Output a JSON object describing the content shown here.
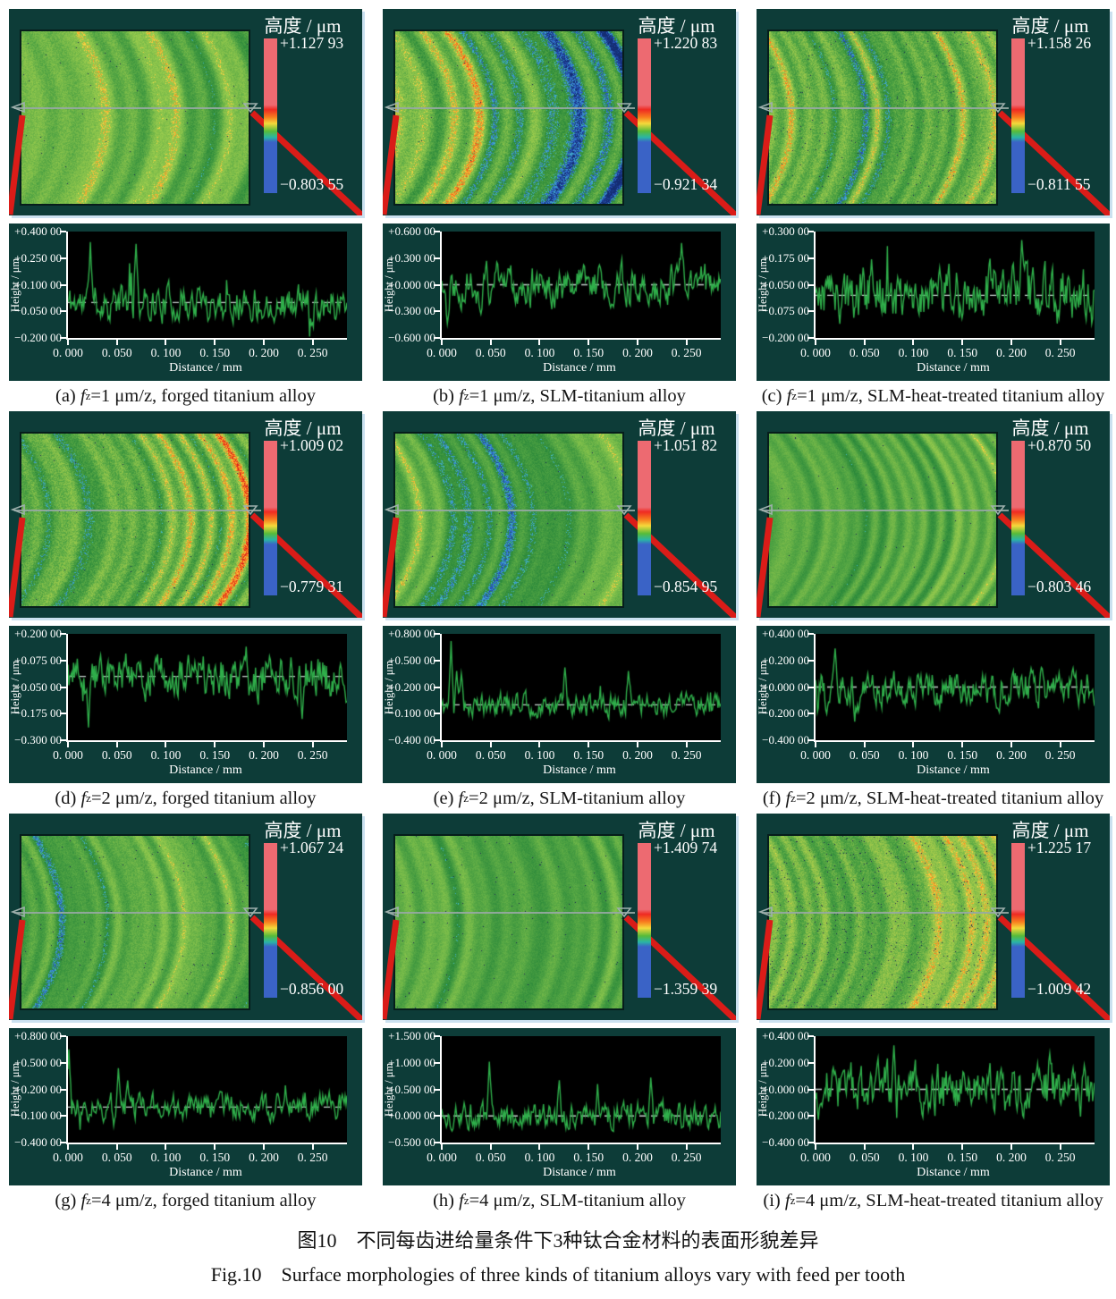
{
  "figure": {
    "colorbar_title": "高度 / μm",
    "height_axis_label": "Height / μm",
    "distance_axis_label": "Distance / mm",
    "x_ticks": [
      "0. 000",
      "0. 050",
      "0. 100",
      "0. 150",
      "0. 200",
      "0. 250"
    ],
    "caption_f_symbol": "f",
    "caption_f_subscript": "z",
    "caption_zh": "图10　不同每齿进给量条件下3种钛合金材料的表面形貌差异",
    "caption_en": "Fig.10　Surface morphologies of three kinds of titanium alloys vary with feed per tooth"
  },
  "colors": {
    "panel_background": "#0d3c38",
    "plot_background": "#000000",
    "profile_line": "#2fae4a",
    "baseline_dash": "#c8d2cf",
    "connector_red": "#da1c18",
    "axis_text": "#ffffff",
    "colorbar_top": "#ed6a71",
    "colorbar_bottom": "#3a63c6"
  },
  "panels": [
    {
      "id": "a",
      "colorbar": {
        "max": "+1.127 93",
        "min": "−0.803 55"
      },
      "caption": {
        "label": "(a) ",
        "feed": "=1 μm/z, ",
        "material": "forged titanium alloy"
      },
      "profile": {
        "type": "line",
        "ylim": [
          -0.2,
          0.4
        ],
        "y_ticks": [
          "+0.400 00",
          "+0.250 00",
          "+0.100 00",
          "−0.050 00",
          "−0.200 00"
        ],
        "seed": 11,
        "amp": 0.055,
        "spike_prob": 0.012,
        "spike_amp": 0.18,
        "spike_bias": 0.7,
        "peaks": [
          [
            0.08,
            0.34
          ],
          [
            0.245,
            0.33
          ]
        ]
      },
      "heatmap": {
        "seed": 101,
        "red": 0.18,
        "blue": 0.16,
        "yellow": 0.3,
        "grain": 0.55,
        "curve": 1.0,
        "speck": 0.001
      }
    },
    {
      "id": "b",
      "colorbar": {
        "max": "+1.220 83",
        "min": "−0.921 34"
      },
      "caption": {
        "label": "(b) ",
        "feed": "=1 μm/z, ",
        "material": "SLM-titanium alloy"
      },
      "profile": {
        "type": "line",
        "ylim": [
          -0.6,
          0.6
        ],
        "y_ticks": [
          "+0.600 00",
          "+0.300 00",
          "+0.000 00",
          "−0.300 00",
          "−0.600 00"
        ],
        "seed": 22,
        "amp": 0.12,
        "spike_prob": 0.012,
        "spike_amp": 0.2,
        "spike_bias": 0.5,
        "peaks": [
          [
            0.02,
            -0.44
          ],
          [
            0.14,
            -0.33
          ],
          [
            0.86,
            0.47
          ]
        ]
      },
      "heatmap": {
        "seed": 202,
        "red": 0.22,
        "blue": 0.3,
        "yellow": 0.35,
        "grain": 0.6,
        "curve": 1.2,
        "speck": 0.001
      }
    },
    {
      "id": "c",
      "colorbar": {
        "max": "+1.158 26",
        "min": "−0.811 55"
      },
      "caption": {
        "label": "(c) ",
        "feed": "=1 μm/z, ",
        "material": "SLM-heat-treated titanium alloy"
      },
      "profile": {
        "type": "line",
        "ylim": [
          -0.2,
          0.3
        ],
        "y_ticks": [
          "+0.300 00",
          "+0.175 00",
          "+0.050 00",
          "−0.075 00",
          "−0.200 00"
        ],
        "seed": 33,
        "amp": 0.07,
        "spike_prob": 0.008,
        "spike_amp": 0.12,
        "spike_bias": 0.6,
        "peaks": [
          [
            0.2,
            0.17
          ],
          [
            0.74,
            0.26
          ]
        ]
      },
      "heatmap": {
        "seed": 303,
        "red": 0.3,
        "blue": 0.1,
        "yellow": 0.45,
        "grain": 0.7,
        "curve": 1.0,
        "speck": 0.004
      }
    },
    {
      "id": "d",
      "colorbar": {
        "max": "+1.009 02",
        "min": "−0.779 31"
      },
      "caption": {
        "label": "(d) ",
        "feed": "=2 μm/z, ",
        "material": "forged titanium alloy"
      },
      "profile": {
        "type": "line",
        "ylim": [
          -0.3,
          0.2
        ],
        "y_ticks": [
          "+0.200 00",
          "+0.075 00",
          "−0.050 00",
          "−0.175 00",
          "−0.300 00"
        ],
        "seed": 44,
        "amp": 0.055,
        "spike_prob": 0.01,
        "spike_amp": 0.12,
        "spike_bias": 0.3,
        "peaks": [
          [
            0.075,
            -0.24
          ],
          [
            0.64,
            0.14
          ],
          [
            0.84,
            -0.2
          ]
        ]
      },
      "heatmap": {
        "seed": 404,
        "red": 0.42,
        "blue": 0.14,
        "yellow": 0.4,
        "grain": 0.6,
        "curve": 1.2,
        "speck": 0.001
      }
    },
    {
      "id": "e",
      "colorbar": {
        "max": "+1.051 82",
        "min": "−0.854 95"
      },
      "caption": {
        "label": "(e) ",
        "feed": "=2 μm/z, ",
        "material": "SLM-titanium alloy"
      },
      "profile": {
        "type": "line",
        "ylim": [
          -0.4,
          0.8
        ],
        "y_ticks": [
          "+0.800 00",
          "+0.500 00",
          "+0.200 00",
          "−0.100 00",
          "−0.400 00"
        ],
        "seed": 55,
        "amp": 0.07,
        "spike_prob": 0.015,
        "spike_amp": 0.25,
        "spike_bias": 0.85,
        "peaks": [
          [
            0.035,
            0.72
          ],
          [
            0.055,
            0.38
          ],
          [
            0.07,
            0.35
          ],
          [
            0.44,
            0.42
          ],
          [
            0.67,
            0.38
          ]
        ]
      },
      "heatmap": {
        "seed": 505,
        "red": 0.08,
        "blue": 0.28,
        "yellow": 0.2,
        "grain": 0.5,
        "curve": 1.2,
        "speck": 0.001
      }
    },
    {
      "id": "f",
      "colorbar": {
        "max": "+0.870 50",
        "min": "−0.803 46"
      },
      "caption": {
        "label": "(f) ",
        "feed": "=2 μm/z, ",
        "material": "SLM-heat-treated titanium alloy"
      },
      "profile": {
        "type": "line",
        "ylim": [
          -0.4,
          0.4
        ],
        "y_ticks": [
          "+0.400 00",
          "+0.200 00",
          "+0.000 00",
          "−0.200 00",
          "−0.400 00"
        ],
        "seed": 66,
        "amp": 0.07,
        "spike_prob": 0.01,
        "spike_amp": 0.15,
        "spike_bias": 0.4,
        "peaks": [
          [
            0.04,
            -0.2
          ],
          [
            0.07,
            0.29
          ],
          [
            0.14,
            -0.26
          ]
        ]
      },
      "heatmap": {
        "seed": 606,
        "red": 0.1,
        "blue": 0.18,
        "yellow": 0.3,
        "grain": 0.35,
        "curve": 1.3,
        "speck": 0.001
      }
    },
    {
      "id": "g",
      "colorbar": {
        "max": "+1.067 24",
        "min": "−0.856 00"
      },
      "caption": {
        "label": "(g) ",
        "feed": "=4 μm/z, ",
        "material": "forged titanium alloy"
      },
      "profile": {
        "type": "line",
        "ylim": [
          -0.4,
          0.8
        ],
        "y_ticks": [
          "+0.800 00",
          "+0.500 00",
          "+0.200 00",
          "−0.100 00",
          "−0.400 00"
        ],
        "seed": 77,
        "amp": 0.08,
        "spike_prob": 0.02,
        "spike_amp": 0.2,
        "spike_bias": 0.8,
        "peaks": [
          [
            0.005,
            0.65
          ],
          [
            0.18,
            0.44
          ],
          [
            0.215,
            0.3
          ]
        ]
      },
      "heatmap": {
        "seed": 707,
        "red": 0.12,
        "blue": 0.26,
        "yellow": 0.25,
        "grain": 0.5,
        "curve": 1.0,
        "speck": 0.002
      }
    },
    {
      "id": "h",
      "colorbar": {
        "max": "+1.409 74",
        "min": "−1.359 39"
      },
      "caption": {
        "label": "(h) ",
        "feed": "=4 μm/z, ",
        "material": "SLM-titanium alloy"
      },
      "profile": {
        "type": "line",
        "ylim": [
          -0.5,
          1.5
        ],
        "y_ticks": [
          "+1.500 00",
          "+1.000 00",
          "+0.500 00",
          "+0.000 00",
          "−0.500 00"
        ],
        "seed": 88,
        "amp": 0.13,
        "spike_prob": 0.03,
        "spike_amp": 0.3,
        "spike_bias": 0.8,
        "peaks": [
          [
            0.17,
            1.02
          ],
          [
            0.42,
            0.67
          ],
          [
            0.56,
            0.6
          ],
          [
            0.75,
            0.72
          ]
        ]
      },
      "heatmap": {
        "seed": 808,
        "red": 0.06,
        "blue": 0.12,
        "yellow": 0.2,
        "grain": 0.45,
        "curve": 0.8,
        "speck": 0.002
      }
    },
    {
      "id": "i",
      "colorbar": {
        "max": "+1.225 17",
        "min": "−1.009 42"
      },
      "caption": {
        "label": "(i) ",
        "feed": "=4 μm/z, ",
        "material": "SLM-heat-treated titanium alloy"
      },
      "profile": {
        "type": "line",
        "ylim": [
          -0.4,
          0.4
        ],
        "y_ticks": [
          "+0.400 00",
          "+0.200 00",
          "+0.000 00",
          "−0.200 00",
          "−0.400 00"
        ],
        "seed": 99,
        "amp": 0.1,
        "spike_prob": 0.01,
        "spike_amp": 0.15,
        "spike_bias": 0.5,
        "peaks": [
          [
            0.28,
            0.33
          ],
          [
            0.84,
            0.27
          ]
        ]
      },
      "heatmap": {
        "seed": 909,
        "red": 0.3,
        "blue": 0.08,
        "yellow": 0.6,
        "grain": 0.6,
        "curve": 1.0,
        "speck": 0.012
      }
    }
  ]
}
